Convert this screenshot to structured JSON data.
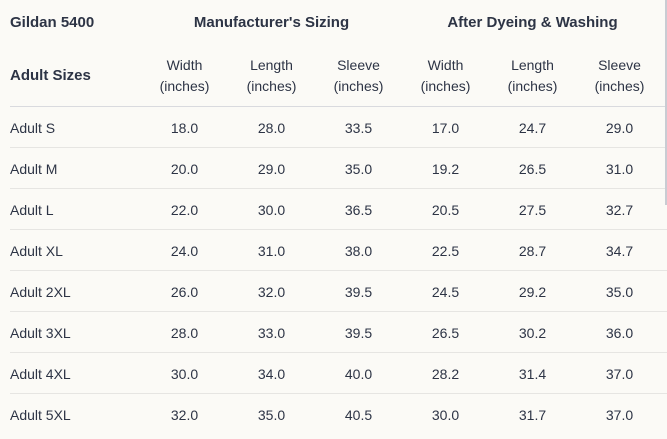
{
  "chart_data": {
    "type": "table",
    "title": "Gildan 5400",
    "row_header_label": "Adult Sizes",
    "groups": [
      {
        "label": "Manufacturer's Sizing",
        "columns": [
          {
            "line1": "Width",
            "line2": "(inches)"
          },
          {
            "line1": "Length",
            "line2": "(inches)"
          },
          {
            "line1": "Sleeve",
            "line2": "(inches)"
          }
        ]
      },
      {
        "label": "After Dyeing & Washing",
        "columns": [
          {
            "line1": "Width",
            "line2": "(inches)"
          },
          {
            "line1": "Length",
            "line2": "(inches)"
          },
          {
            "line1": "Sleeve",
            "line2": "(inches)"
          }
        ]
      }
    ],
    "rows": [
      {
        "label": "Adult S",
        "values": [
          "18.0",
          "28.0",
          "33.5",
          "17.0",
          "24.7",
          "29.0"
        ]
      },
      {
        "label": "Adult M",
        "values": [
          "20.0",
          "29.0",
          "35.0",
          "19.2",
          "26.5",
          "31.0"
        ]
      },
      {
        "label": "Adult L",
        "values": [
          "22.0",
          "30.0",
          "36.5",
          "20.5",
          "27.5",
          "32.7"
        ]
      },
      {
        "label": "Adult XL",
        "values": [
          "24.0",
          "31.0",
          "38.0",
          "22.5",
          "28.7",
          "34.7"
        ]
      },
      {
        "label": "Adult 2XL",
        "values": [
          "26.0",
          "32.0",
          "39.5",
          "24.5",
          "29.2",
          "35.0"
        ]
      },
      {
        "label": "Adult 3XL",
        "values": [
          "28.0",
          "33.0",
          "39.5",
          "26.5",
          "30.2",
          "36.0"
        ]
      },
      {
        "label": "Adult 4XL",
        "values": [
          "30.0",
          "34.0",
          "40.0",
          "28.2",
          "31.4",
          "37.0"
        ]
      },
      {
        "label": "Adult 5XL",
        "values": [
          "32.0",
          "35.0",
          "40.5",
          "30.0",
          "31.7",
          "37.0"
        ]
      }
    ]
  },
  "colors": {
    "background": "#fbfaf6",
    "text": "#2d3445",
    "row_divider": "#e6e5e2",
    "header_divider": "#d9dade",
    "scrollbar": "#c9ccd3"
  }
}
